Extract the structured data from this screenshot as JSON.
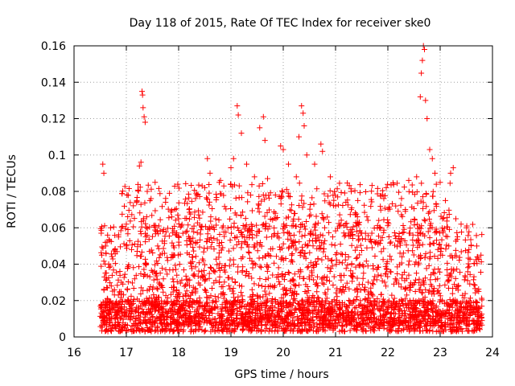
{
  "chart_data": {
    "type": "scatter",
    "title": "Day 118 of 2015, Rate Of TEC Index for receiver ske0",
    "xlabel": "GPS time / hours",
    "ylabel": "ROTI / TECUs",
    "xlim": [
      16,
      24
    ],
    "ylim": [
      0,
      0.16
    ],
    "xticks": [
      16,
      17,
      18,
      19,
      20,
      21,
      22,
      23,
      24
    ],
    "yticks": [
      0,
      0.02,
      0.04,
      0.06,
      0.08,
      0.1,
      0.12,
      0.14,
      0.16
    ],
    "xtick_labels": [
      "16",
      "17",
      "18",
      "19",
      "20",
      "21",
      "22",
      "23",
      "24"
    ],
    "ytick_labels": [
      "0",
      "0.02",
      "0.04",
      "0.06",
      "0.08",
      "0.1",
      "0.12",
      "0.14",
      "0.16"
    ],
    "grid": true,
    "marker": "plus",
    "marker_color": "#ff0000",
    "series": [
      {
        "name": "ROTI",
        "data_range_x": [
          16.5,
          23.8
        ],
        "points": [
          [
            16.55,
            0.095
          ],
          [
            16.57,
            0.09
          ],
          [
            16.52,
            0.057
          ],
          [
            16.53,
            0.045
          ],
          [
            16.58,
            0.033
          ],
          [
            16.6,
            0.052
          ],
          [
            16.62,
            0.018
          ],
          [
            16.7,
            0.06
          ],
          [
            16.75,
            0.015
          ],
          [
            16.85,
            0.055
          ],
          [
            17.0,
            0.062
          ],
          [
            17.1,
            0.048
          ],
          [
            17.2,
            0.075
          ],
          [
            17.25,
            0.094
          ],
          [
            17.28,
            0.096
          ],
          [
            17.3,
            0.135
          ],
          [
            17.31,
            0.133
          ],
          [
            17.32,
            0.126
          ],
          [
            17.34,
            0.121
          ],
          [
            17.36,
            0.118
          ],
          [
            17.4,
            0.08
          ],
          [
            17.45,
            0.075
          ],
          [
            17.55,
            0.085
          ],
          [
            17.7,
            0.058
          ],
          [
            17.9,
            0.05
          ],
          [
            18.0,
            0.065
          ],
          [
            18.2,
            0.07
          ],
          [
            18.35,
            0.078
          ],
          [
            18.5,
            0.082
          ],
          [
            18.55,
            0.098
          ],
          [
            18.6,
            0.09
          ],
          [
            18.8,
            0.086
          ],
          [
            19.0,
            0.093
          ],
          [
            19.05,
            0.098
          ],
          [
            19.12,
            0.127
          ],
          [
            19.14,
            0.122
          ],
          [
            19.2,
            0.112
          ],
          [
            19.3,
            0.095
          ],
          [
            19.45,
            0.088
          ],
          [
            19.55,
            0.115
          ],
          [
            19.62,
            0.121
          ],
          [
            19.65,
            0.108
          ],
          [
            19.7,
            0.087
          ],
          [
            19.85,
            0.078
          ],
          [
            19.95,
            0.105
          ],
          [
            20.0,
            0.103
          ],
          [
            20.1,
            0.095
          ],
          [
            20.25,
            0.088
          ],
          [
            20.3,
            0.11
          ],
          [
            20.35,
            0.127
          ],
          [
            20.38,
            0.123
          ],
          [
            20.4,
            0.116
          ],
          [
            20.45,
            0.1
          ],
          [
            20.6,
            0.095
          ],
          [
            20.72,
            0.106
          ],
          [
            20.75,
            0.102
          ],
          [
            20.9,
            0.088
          ],
          [
            21.0,
            0.072
          ],
          [
            21.3,
            0.07
          ],
          [
            21.6,
            0.066
          ],
          [
            21.8,
            0.06
          ],
          [
            22.0,
            0.063
          ],
          [
            22.15,
            0.072
          ],
          [
            22.4,
            0.086
          ],
          [
            22.55,
            0.088
          ],
          [
            22.62,
            0.132
          ],
          [
            22.64,
            0.145
          ],
          [
            22.66,
            0.152
          ],
          [
            22.68,
            0.16
          ],
          [
            22.7,
            0.158
          ],
          [
            22.72,
            0.13
          ],
          [
            22.75,
            0.12
          ],
          [
            22.8,
            0.103
          ],
          [
            22.85,
            0.098
          ],
          [
            22.9,
            0.09
          ],
          [
            23.0,
            0.085
          ],
          [
            23.1,
            0.075
          ],
          [
            23.2,
            0.09
          ],
          [
            23.25,
            0.093
          ],
          [
            23.3,
            0.065
          ],
          [
            23.4,
            0.062
          ],
          [
            23.55,
            0.048
          ],
          [
            23.7,
            0.05
          ],
          [
            23.78,
            0.045
          ]
        ],
        "band": {
          "description_values": "dense cluster of ROTI values between 0.005 and 0.06 TECUs across 16.5–23.8 h",
          "y_min": 0.003,
          "y_max": 0.062
        }
      }
    ]
  }
}
